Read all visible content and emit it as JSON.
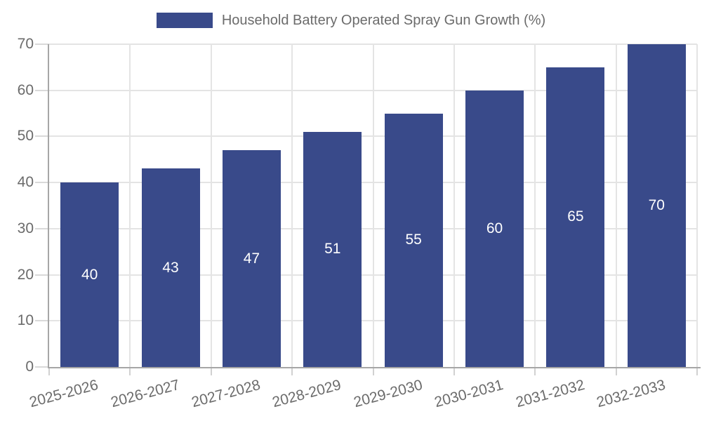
{
  "chart_data": {
    "type": "bar",
    "title": "Household Battery Operated Spray Gun Growth (%)",
    "categories": [
      "2025-2026",
      "2026-2027",
      "2027-2028",
      "2028-2029",
      "2029-2030",
      "2030-2031",
      "2031-2032",
      "2032-2033"
    ],
    "values": [
      40,
      43,
      47,
      51,
      55,
      60,
      65,
      70
    ],
    "xlabel": "",
    "ylabel": "",
    "ylim": [
      0,
      70
    ],
    "yticks": [
      0,
      10,
      20,
      30,
      40,
      50,
      60,
      70
    ],
    "grid": true,
    "legend_position": "top",
    "bar_color": "#394A8A",
    "value_label_color": "#FFFFFF",
    "axis_text_color": "#6B6B6B",
    "background_color": "#FFFFFF",
    "x_label_rotation_deg": -15
  }
}
